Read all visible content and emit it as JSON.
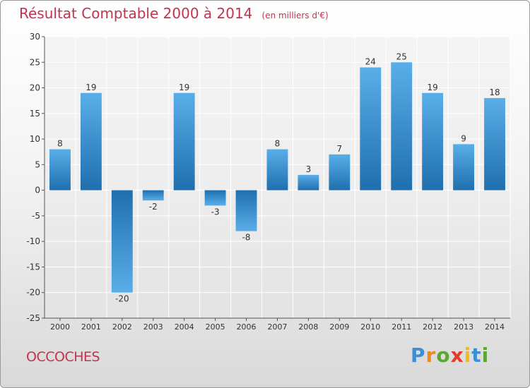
{
  "header": {
    "title": "Résultat Comptable 2000 à 2014",
    "subtitle": "(en milliers d'€)"
  },
  "footer": {
    "place": "OCCOCHES",
    "logo": {
      "letters": [
        "P",
        "r",
        "o",
        "x",
        "i",
        "t",
        "i"
      ],
      "colors": [
        "#3a8fd6",
        "#f08a1c",
        "#5aa832",
        "#e23a2b",
        "#f2b81c",
        "#3a8fd6",
        "#5aa832"
      ]
    }
  },
  "chart_data": {
    "type": "bar",
    "title": "Résultat Comptable 2000 à 2014",
    "subtitle": "(en milliers d'€)",
    "xlabel": "",
    "ylabel": "",
    "categories": [
      "2000",
      "2001",
      "2002",
      "2003",
      "2004",
      "2005",
      "2006",
      "2007",
      "2008",
      "2009",
      "2010",
      "2011",
      "2012",
      "2013",
      "2014"
    ],
    "values": [
      8,
      19,
      -20,
      -2,
      19,
      -3,
      -8,
      8,
      3,
      7,
      24,
      25,
      19,
      9,
      18
    ],
    "ylim": [
      -25,
      30
    ],
    "yticks": [
      -25,
      -20,
      -15,
      -10,
      -5,
      0,
      5,
      10,
      15,
      20,
      25,
      30
    ],
    "grid": true,
    "colors": {
      "bar_light": "#5aaee8",
      "bar_dark": "#1f6faf",
      "grid": "#ffffff",
      "axis": "#555555",
      "text": "#333333"
    }
  }
}
